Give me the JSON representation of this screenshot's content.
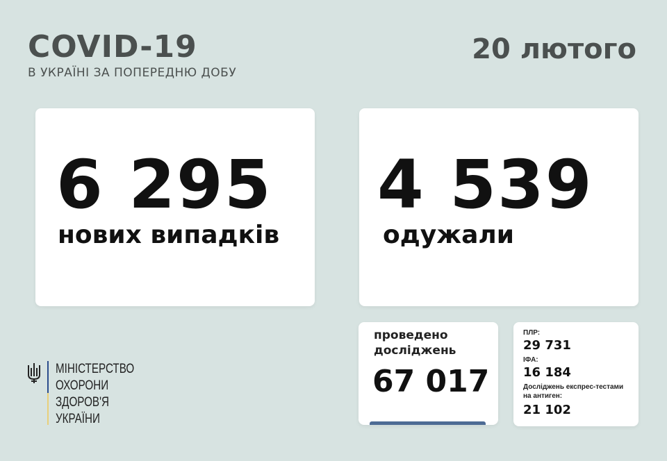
{
  "header": {
    "title": "COVID-19",
    "subtitle": "В УКРАЇНІ ЗА ПОПЕРЕДНЮ ДОБУ",
    "date": "20 лютого"
  },
  "new_cases": {
    "value": "6 295",
    "label": "нових випадків"
  },
  "recovered": {
    "value": "4 539",
    "label": "одужали"
  },
  "tests": {
    "label_line1": "проведено",
    "label_line2": "досліджень",
    "value": "67 017"
  },
  "breakdown": {
    "pcr_label": "ПЛР:",
    "pcr_value": "29 731",
    "ifa_label": "ІФА:",
    "ifa_value": "16 184",
    "antigen_label_line1": "Досліджень експрес-тестами",
    "antigen_label_line2": "на антиген:",
    "antigen_value": "21 102"
  },
  "logo": {
    "line1": "МІНІСТЕРСТВО",
    "line2": "ОХОРОНИ",
    "line3": "ЗДОРОВ'Я",
    "line4": "УКРАЇНИ",
    "icon": "trident-icon"
  },
  "colors": {
    "background": "#d7e3e1",
    "heading": "#4b504f",
    "accent_bar": "#4d6b94",
    "flag_blue": "#2b4c8c",
    "flag_yellow": "#e9cf7a"
  }
}
